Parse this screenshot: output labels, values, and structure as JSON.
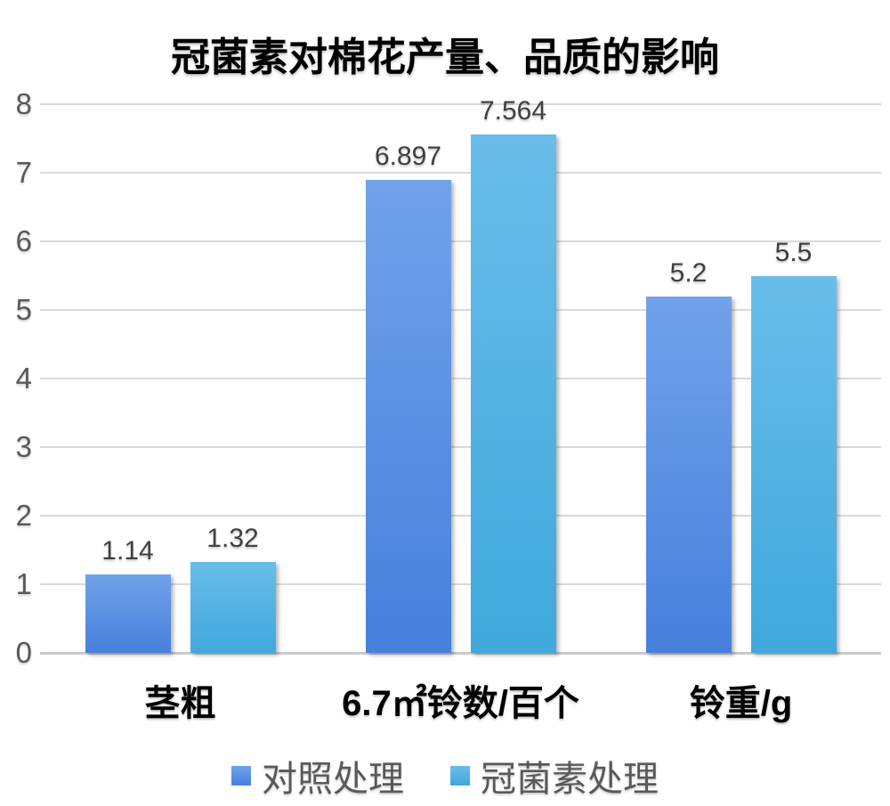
{
  "chart_data": {
    "type": "bar",
    "title": "冠菌素对棉花产量、品质的影响",
    "categories": [
      "茎粗",
      "6.7㎡铃数/百个",
      "铃重/g"
    ],
    "series": [
      {
        "name": "对照处理",
        "values": [
          1.14,
          6.897,
          5.2
        ],
        "data_labels": [
          "1.14",
          "6.897",
          "5.2"
        ],
        "color_top": "#71A2EA",
        "color_bottom": "#4680DC",
        "legend_color": "#5B8FE2"
      },
      {
        "name": "冠菌素处理",
        "values": [
          1.32,
          7.564,
          5.5
        ],
        "data_labels": [
          "1.32",
          "7.564",
          "5.5"
        ],
        "color_top": "#69BDE9",
        "color_bottom": "#3FA8DC",
        "legend_color": "#4FB2E5"
      }
    ],
    "xlabel": "",
    "ylabel": "",
    "y_axis": {
      "min": 0,
      "max": 8,
      "step": 1,
      "tick_labels": [
        "0",
        "1",
        "2",
        "3",
        "4",
        "5",
        "6",
        "7",
        "8"
      ]
    },
    "grid": true,
    "legend_position": "bottom",
    "colors": {
      "title_text": "#000000",
      "axis_text": "#595959",
      "data_label_text": "#404040",
      "category_text": "#000000",
      "legend_text": "#595959",
      "gridline": "#D9D9D9",
      "baseline": "#CBCBCB",
      "background": "#FFFFFF"
    }
  }
}
